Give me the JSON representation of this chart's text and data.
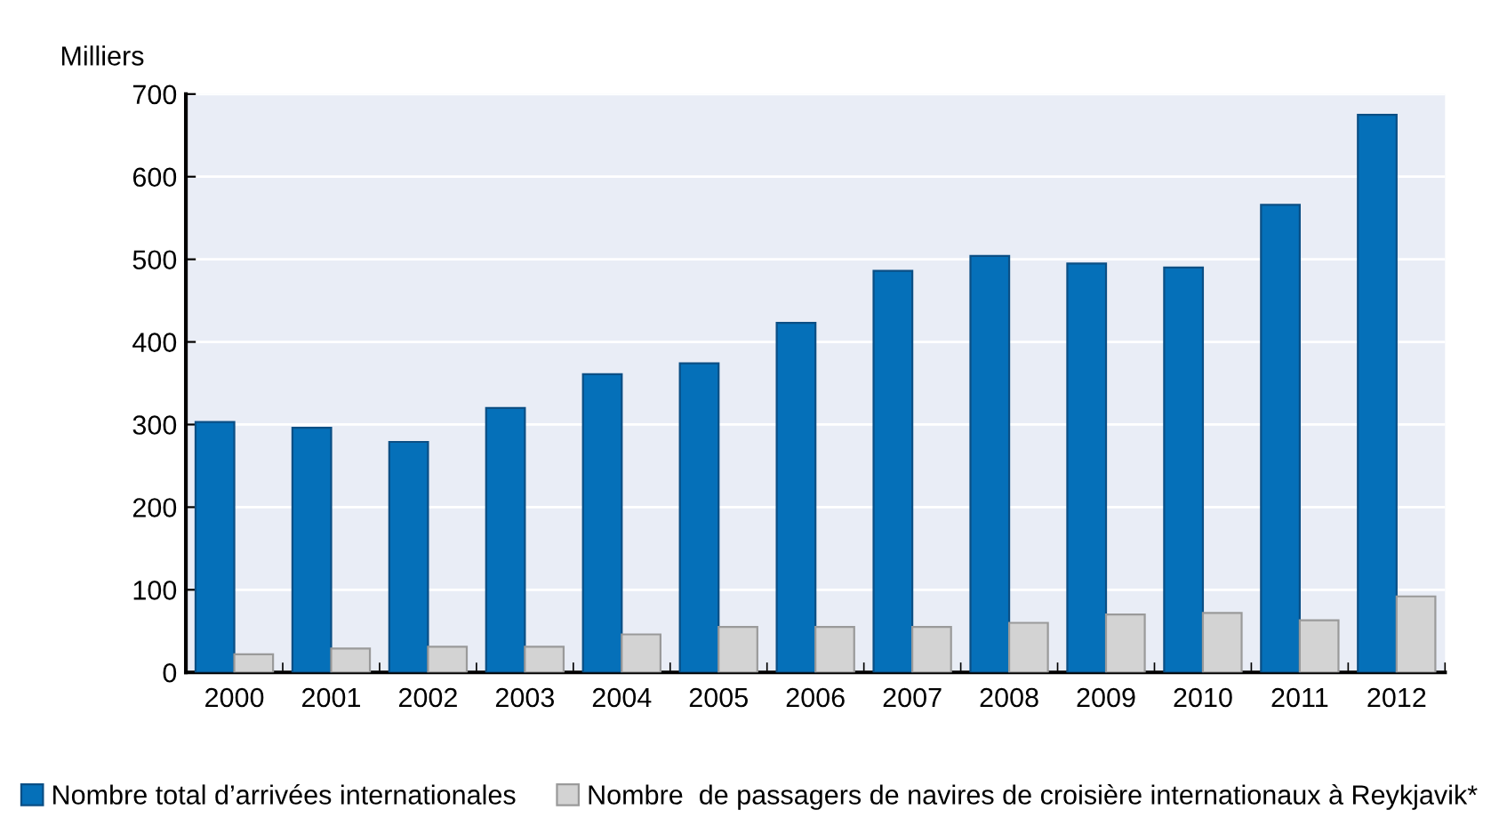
{
  "chart_data": {
    "type": "bar",
    "ylabel": "Milliers",
    "categories": [
      "2000",
      "2001",
      "2002",
      "2003",
      "2004",
      "2005",
      "2006",
      "2007",
      "2008",
      "2009",
      "2010",
      "2011",
      "2012"
    ],
    "series": [
      {
        "name": "Nombre total d’arrivées internationales",
        "color": "#0570b9",
        "values": [
          303,
          296,
          279,
          320,
          361,
          374,
          423,
          486,
          504,
          495,
          490,
          566,
          675
        ]
      },
      {
        "name": "Nombre  de passagers de navires de croisière internationaux à Reykjavik*",
        "color": "#d3d3d3",
        "values": [
          22,
          29,
          31,
          31,
          46,
          55,
          55,
          55,
          60,
          70,
          72,
          63,
          92
        ]
      }
    ],
    "ylim": [
      0,
      700
    ],
    "yticks": [
      0,
      100,
      200,
      300,
      400,
      500,
      600,
      700
    ],
    "grid": "y",
    "legend": "bottom"
  }
}
